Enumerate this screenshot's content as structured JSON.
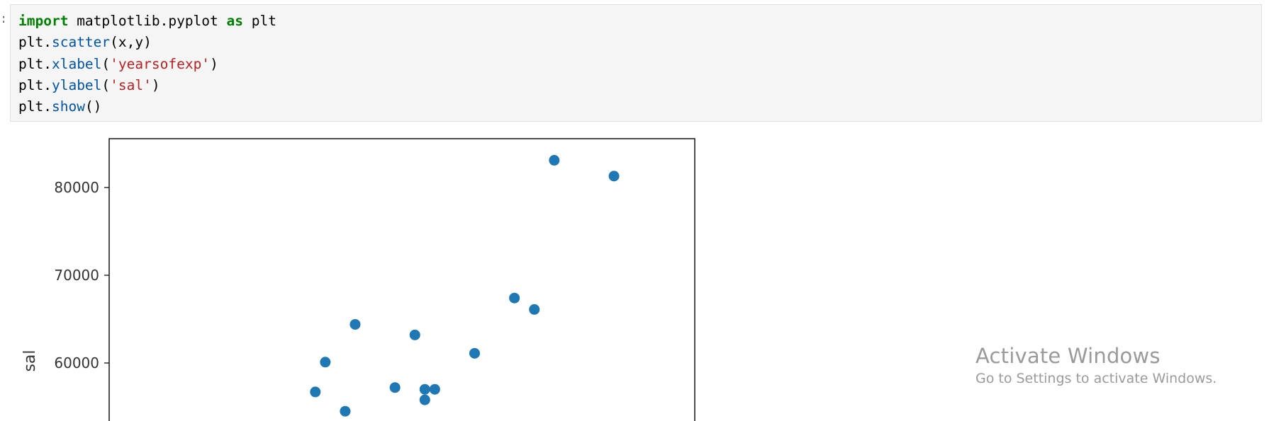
{
  "cell": {
    "prompt": ":",
    "code_lines": [
      {
        "tokens": [
          {
            "text": "import",
            "style": "kw"
          },
          {
            "text": " matplotlib.pyplot ",
            "style": "plain"
          },
          {
            "text": "as",
            "style": "kw"
          },
          {
            "text": " plt",
            "style": "plain"
          }
        ]
      },
      {
        "tokens": [
          {
            "text": "plt.",
            "style": "plain"
          },
          {
            "text": "scatter",
            "style": "fn"
          },
          {
            "text": "(x,y)",
            "style": "plain"
          }
        ]
      },
      {
        "tokens": [
          {
            "text": "plt.",
            "style": "plain"
          },
          {
            "text": "xlabel",
            "style": "fn"
          },
          {
            "text": "(",
            "style": "plain"
          },
          {
            "text": "'yearsofexp'",
            "style": "str"
          },
          {
            "text": ")",
            "style": "plain"
          }
        ]
      },
      {
        "tokens": [
          {
            "text": "plt.",
            "style": "plain"
          },
          {
            "text": "ylabel",
            "style": "fn"
          },
          {
            "text": "(",
            "style": "plain"
          },
          {
            "text": "'sal'",
            "style": "str"
          },
          {
            "text": ")",
            "style": "plain"
          }
        ]
      },
      {
        "tokens": [
          {
            "text": "plt.",
            "style": "plain"
          },
          {
            "text": "show",
            "style": "fn"
          },
          {
            "text": "()",
            "style": "plain"
          }
        ]
      }
    ]
  },
  "chart_data": {
    "type": "scatter",
    "title": "",
    "xlabel": "",
    "ylabel": "sal",
    "ylim": [
      51000,
      85500
    ],
    "xlim": [
      0,
      10
    ],
    "y_ticks": [
      60000,
      70000,
      80000
    ],
    "grid": false,
    "marker_color": "#1f77b4",
    "points": [
      {
        "x": 3.8,
        "y": 56700
      },
      {
        "x": 4.0,
        "y": 60100
      },
      {
        "x": 4.4,
        "y": 54500
      },
      {
        "x": 4.6,
        "y": 64400
      },
      {
        "x": 5.4,
        "y": 57200
      },
      {
        "x": 5.8,
        "y": 63200
      },
      {
        "x": 6.0,
        "y": 57000
      },
      {
        "x": 6.0,
        "y": 55800
      },
      {
        "x": 6.2,
        "y": 57000
      },
      {
        "x": 7.0,
        "y": 61100
      },
      {
        "x": 7.8,
        "y": 67400
      },
      {
        "x": 8.2,
        "y": 66100
      },
      {
        "x": 8.6,
        "y": 83100
      },
      {
        "x": 9.8,
        "y": 81300
      }
    ]
  },
  "watermark": {
    "title": "Activate Windows",
    "subtitle": "Go to Settings to activate Windows."
  }
}
